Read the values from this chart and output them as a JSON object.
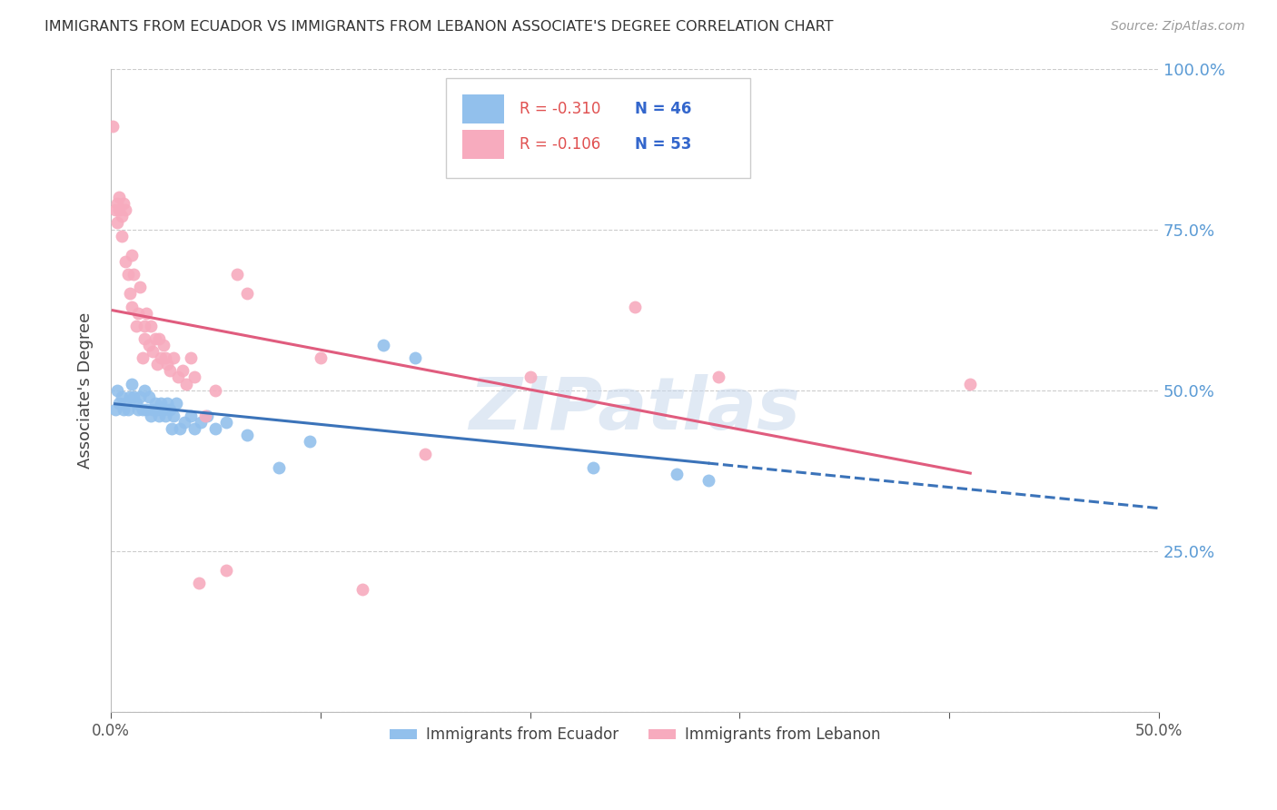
{
  "title": "IMMIGRANTS FROM ECUADOR VS IMMIGRANTS FROM LEBANON ASSOCIATE'S DEGREE CORRELATION CHART",
  "source": "Source: ZipAtlas.com",
  "ylabel": "Associate's Degree",
  "x_min": 0.0,
  "x_max": 0.5,
  "y_min": 0.0,
  "y_max": 1.0,
  "x_ticks": [
    0.0,
    0.1,
    0.2,
    0.3,
    0.4,
    0.5
  ],
  "x_tick_labels": [
    "0.0%",
    "",
    "",
    "",
    "",
    "50.0%"
  ],
  "y_ticks": [
    0.0,
    0.25,
    0.5,
    0.75,
    1.0
  ],
  "y_tick_labels": [
    "",
    "25.0%",
    "50.0%",
    "75.0%",
    "100.0%"
  ],
  "ecuador_R": -0.31,
  "ecuador_N": 46,
  "lebanon_R": -0.106,
  "lebanon_N": 53,
  "ecuador_color": "#92C0EC",
  "lebanon_color": "#F7ABBE",
  "trendline_ecuador_color": "#3B73B9",
  "trendline_lebanon_color": "#E05C7E",
  "watermark": "ZIPatlas",
  "ecuador_x": [
    0.002,
    0.003,
    0.004,
    0.005,
    0.006,
    0.007,
    0.008,
    0.009,
    0.01,
    0.011,
    0.012,
    0.013,
    0.014,
    0.015,
    0.016,
    0.017,
    0.018,
    0.019,
    0.02,
    0.021,
    0.022,
    0.023,
    0.024,
    0.025,
    0.026,
    0.027,
    0.028,
    0.029,
    0.03,
    0.031,
    0.033,
    0.035,
    0.038,
    0.04,
    0.043,
    0.046,
    0.05,
    0.055,
    0.065,
    0.08,
    0.095,
    0.13,
    0.145,
    0.23,
    0.27,
    0.285
  ],
  "ecuador_y": [
    0.47,
    0.5,
    0.48,
    0.49,
    0.47,
    0.48,
    0.47,
    0.49,
    0.51,
    0.49,
    0.48,
    0.47,
    0.49,
    0.47,
    0.5,
    0.47,
    0.49,
    0.46,
    0.47,
    0.48,
    0.47,
    0.46,
    0.48,
    0.47,
    0.46,
    0.48,
    0.47,
    0.44,
    0.46,
    0.48,
    0.44,
    0.45,
    0.46,
    0.44,
    0.45,
    0.46,
    0.44,
    0.45,
    0.43,
    0.38,
    0.42,
    0.57,
    0.55,
    0.38,
    0.37,
    0.36
  ],
  "lebanon_x": [
    0.001,
    0.002,
    0.003,
    0.003,
    0.004,
    0.004,
    0.005,
    0.005,
    0.006,
    0.007,
    0.007,
    0.008,
    0.009,
    0.01,
    0.01,
    0.011,
    0.012,
    0.013,
    0.014,
    0.015,
    0.016,
    0.016,
    0.017,
    0.018,
    0.019,
    0.02,
    0.021,
    0.022,
    0.023,
    0.024,
    0.025,
    0.026,
    0.027,
    0.028,
    0.03,
    0.032,
    0.034,
    0.036,
    0.038,
    0.04,
    0.042,
    0.045,
    0.05,
    0.055,
    0.06,
    0.065,
    0.1,
    0.12,
    0.15,
    0.2,
    0.25,
    0.29,
    0.41
  ],
  "lebanon_y": [
    0.91,
    0.78,
    0.79,
    0.76,
    0.78,
    0.8,
    0.77,
    0.74,
    0.79,
    0.78,
    0.7,
    0.68,
    0.65,
    0.63,
    0.71,
    0.68,
    0.6,
    0.62,
    0.66,
    0.55,
    0.6,
    0.58,
    0.62,
    0.57,
    0.6,
    0.56,
    0.58,
    0.54,
    0.58,
    0.55,
    0.57,
    0.55,
    0.54,
    0.53,
    0.55,
    0.52,
    0.53,
    0.51,
    0.55,
    0.52,
    0.2,
    0.46,
    0.5,
    0.22,
    0.68,
    0.65,
    0.55,
    0.19,
    0.4,
    0.52,
    0.63,
    0.52,
    0.51
  ]
}
